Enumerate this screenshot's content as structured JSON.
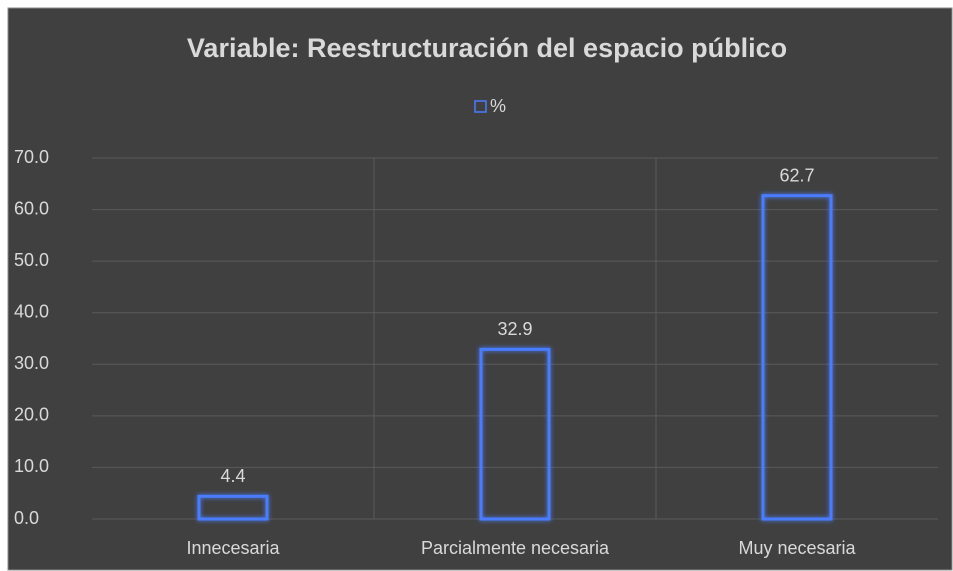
{
  "chart_data": {
    "type": "bar",
    "title": "Variable: Reestructuración del espacio público",
    "categories": [
      "Innecesaria",
      "Parcialmente necesaria",
      "Muy necesaria"
    ],
    "series": [
      {
        "name": "%",
        "color": "#4a7bff",
        "values": [
          4.4,
          32.9,
          62.7
        ]
      }
    ],
    "ylim": [
      0,
      70
    ],
    "yticks": [
      {
        "value": 0,
        "label": "0.0"
      },
      {
        "value": 10,
        "label": "10.0"
      },
      {
        "value": 20,
        "label": "20.0"
      },
      {
        "value": 30,
        "label": "30.0"
      },
      {
        "value": 40,
        "label": "40.0"
      },
      {
        "value": 50,
        "label": "50.0"
      },
      {
        "value": 60,
        "label": "60.0"
      },
      {
        "value": 70,
        "label": "70.0"
      }
    ],
    "grid": true,
    "legend": "top"
  }
}
